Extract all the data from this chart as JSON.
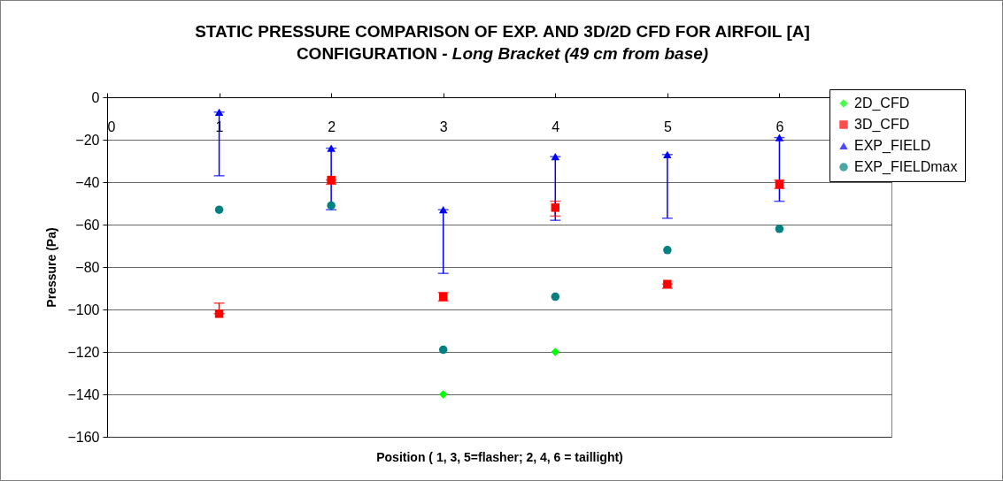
{
  "chart_data": {
    "type": "scatter",
    "title": "STATIC PRESSURE COMPARISON OF EXP. AND 3D/2D CFD FOR AIRFOIL [A] CONFIGURATION",
    "subtitle": "- Long Bracket (49 cm from base)",
    "xlabel": "Position ( 1, 3, 5=flasher; 2, 4, 6 = taillight)",
    "ylabel": "Pressure (Pa)",
    "x": [
      1,
      2,
      3,
      4,
      5,
      6
    ],
    "series": [
      {
        "name": "2D_CFD",
        "color": "#00ff00",
        "marker": "diamond",
        "values": [
          null,
          null,
          -140,
          -120,
          null,
          null
        ]
      },
      {
        "name": "3D_CFD",
        "color": "#ff0000",
        "marker": "square",
        "values": [
          -102,
          -39,
          -94,
          -52,
          -88,
          -41
        ],
        "errors": [
          [
            -102,
            -97
          ],
          [
            -41,
            -39
          ],
          [
            -96,
            -92
          ],
          [
            -56,
            -49
          ],
          [
            -90,
            -88
          ],
          [
            -43,
            -39
          ]
        ]
      },
      {
        "name": "EXP_FIELD",
        "color": "#0000ff",
        "marker": "triangle",
        "values": [
          -7,
          -24,
          -53,
          -28,
          -27,
          -19
        ],
        "errors": [
          [
            -37,
            -7
          ],
          [
            -53,
            -24
          ],
          [
            -83,
            -53
          ],
          [
            -58,
            -28
          ],
          [
            -57,
            -27
          ],
          [
            -49,
            -19
          ]
        ]
      },
      {
        "name": "EXP_FIELDmax",
        "color": "#008080",
        "marker": "circle",
        "values": [
          -53,
          -51,
          -119,
          -94,
          -72,
          -62
        ]
      }
    ],
    "xlim": [
      0,
      7
    ],
    "xticks": [
      0,
      1,
      2,
      3,
      4,
      5,
      6
    ],
    "ylim": [
      -160,
      0
    ],
    "yticks": [
      -160,
      -140,
      -120,
      -100,
      -80,
      -60,
      -40,
      -20,
      0
    ],
    "grid": "y",
    "legend": "top right"
  }
}
